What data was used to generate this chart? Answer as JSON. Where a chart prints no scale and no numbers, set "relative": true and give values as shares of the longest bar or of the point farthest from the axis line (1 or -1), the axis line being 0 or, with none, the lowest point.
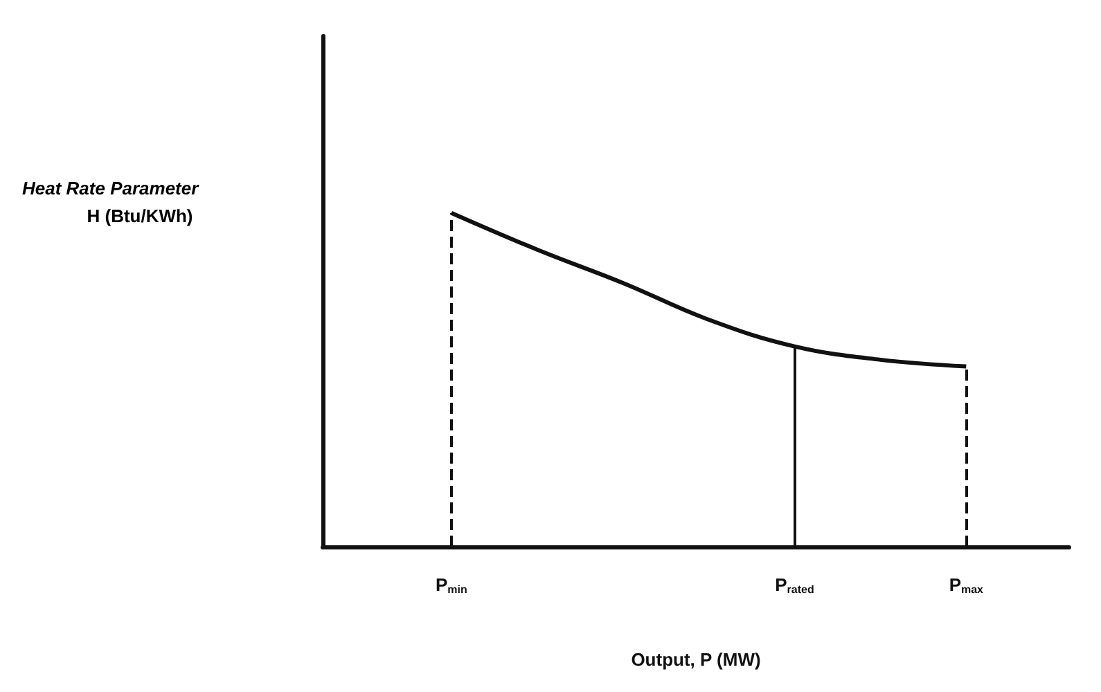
{
  "chart_data": {
    "type": "line",
    "xlabel": "Output, P (MW)",
    "annotations": [
      "Heat Rate Parameter\nH (Btu/KWh)"
    ],
    "relative": true,
    "marker": "none",
    "categories": [
      "P$_{min}$",
      null,
      null,
      null,
      "P$_{rated}$",
      null,
      "P$_{max}$"
    ],
    "series": [
      {
        "color": "#111111",
        "values": [
          1,
          0.89,
          0.79,
          0.68,
          0.6,
          0.56,
          0.54
        ]
      }
    ],
    "ref_lines": [
      {
        "axis": "x",
        "value": "P$_{min}$",
        "line_style": "dashed",
        "color": "#111111"
      },
      {
        "axis": "x",
        "value": "P$_{rated}$",
        "line_style": "solid",
        "color": "#111111"
      },
      {
        "axis": "x",
        "value": "P$_{max}$",
        "line_style": "dashed",
        "color": "#111111"
      }
    ]
  }
}
